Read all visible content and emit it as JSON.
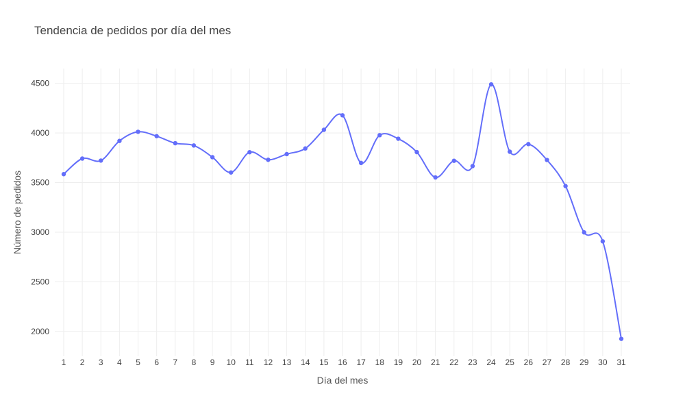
{
  "chart_data": {
    "type": "line",
    "title": "Tendencia de pedidos por día del mes",
    "xlabel": "Día del mes",
    "ylabel": "Número de pedidos",
    "x": [
      1,
      2,
      3,
      4,
      5,
      6,
      7,
      8,
      9,
      10,
      11,
      12,
      13,
      14,
      15,
      16,
      17,
      18,
      19,
      20,
      21,
      22,
      23,
      24,
      25,
      26,
      27,
      28,
      29,
      30,
      31
    ],
    "values": [
      3585,
      3742,
      3722,
      3920,
      4012,
      3968,
      3897,
      3874,
      3756,
      3602,
      3806,
      3730,
      3787,
      3844,
      4032,
      4178,
      3698,
      3978,
      3942,
      3807,
      3552,
      3720,
      3666,
      4490,
      3811,
      3888,
      3728,
      3465,
      2998,
      2908,
      1925
    ],
    "ylim": [
      1750,
      4650
    ],
    "yticks": [
      2000,
      2500,
      3000,
      3500,
      4000,
      4500
    ],
    "grid": true,
    "line_color": "#636efa"
  }
}
